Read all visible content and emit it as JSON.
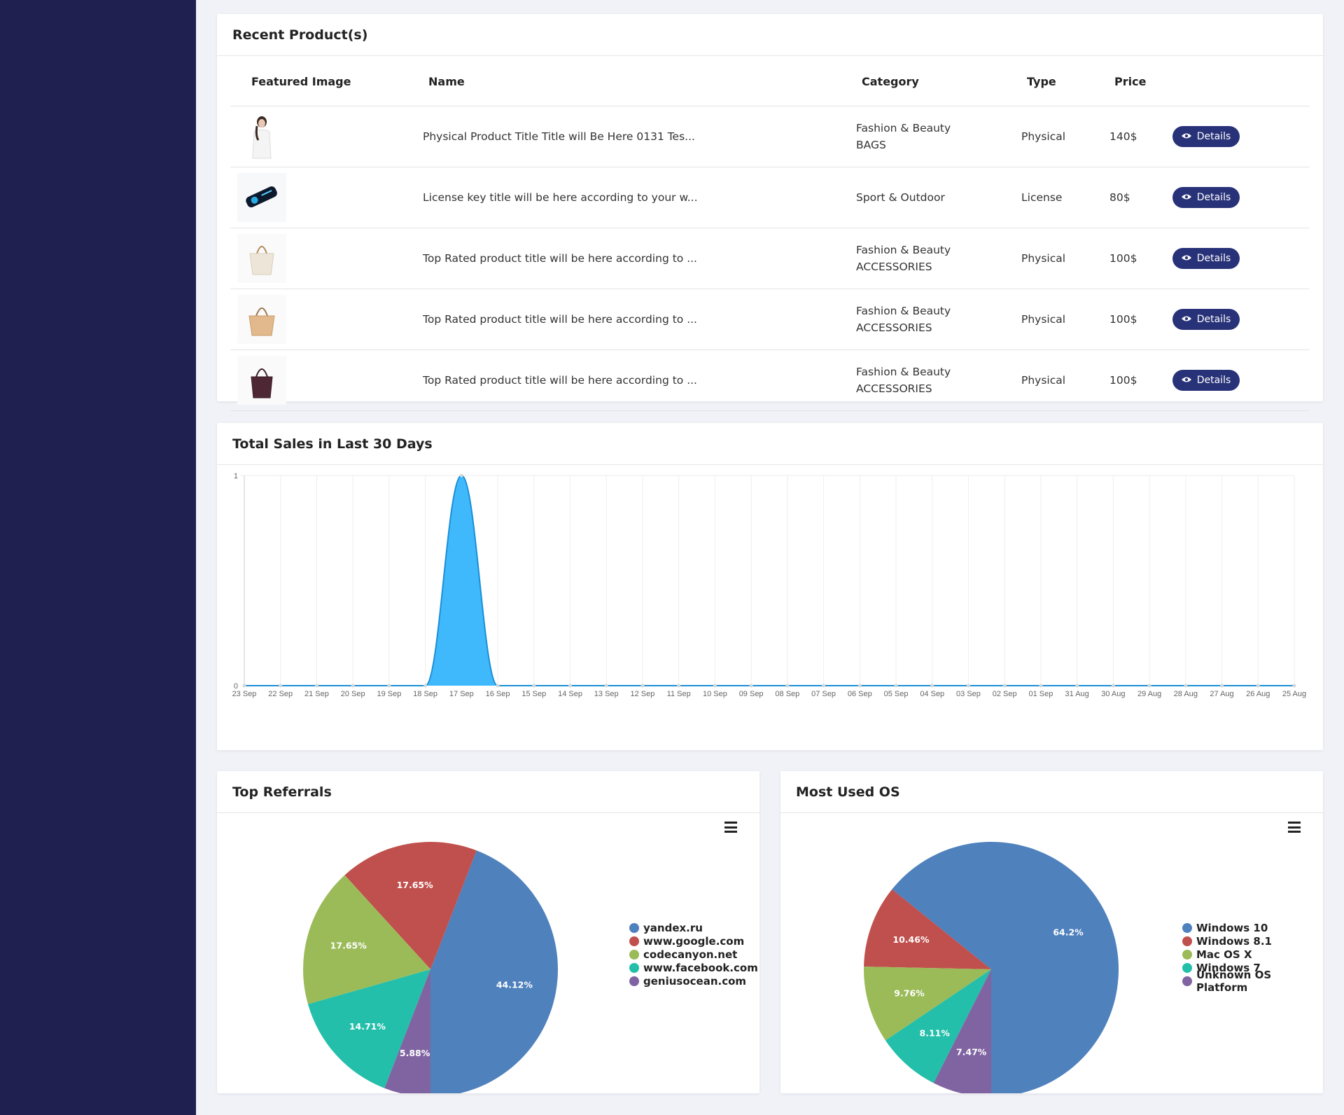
{
  "colors": {
    "sidebar": "#1f2050",
    "button": "#283278",
    "area": "#3fb9fc",
    "line": "#1a8fd6",
    "pie": [
      "#4f81bd",
      "#c0504d",
      "#9bbb59",
      "#23bfaa",
      "#8064a2"
    ]
  },
  "products": {
    "title": "Recent Product(s)",
    "headers": [
      "Featured Image",
      "Name",
      "Category",
      "Type",
      "Price"
    ],
    "button_label": "Details",
    "rows": [
      {
        "image": "model-photo",
        "name": "Physical Product Title Title will Be Here 0131 Tes...",
        "category": "Fashion & Beauty",
        "subcategory": "BAGS",
        "type": "Physical",
        "price": "140$"
      },
      {
        "image": "license-key-usb",
        "name": "License key title will be here according to your w...",
        "category": "Sport & Outdoor",
        "subcategory": "",
        "type": "License",
        "price": "80$"
      },
      {
        "image": "cream-handbag",
        "name": "Top Rated product title will be here according to ...",
        "category": "Fashion & Beauty",
        "subcategory": "ACCESSORIES",
        "type": "Physical",
        "price": "100$"
      },
      {
        "image": "tan-handbag",
        "name": "Top Rated product title will be here according to ...",
        "category": "Fashion & Beauty",
        "subcategory": "ACCESSORIES",
        "type": "Physical",
        "price": "100$"
      },
      {
        "image": "burgundy-handbag",
        "name": "Top Rated product title will be here according to ...",
        "category": "Fashion & Beauty",
        "subcategory": "ACCESSORIES",
        "type": "Physical",
        "price": "100$"
      }
    ]
  },
  "sales": {
    "title": "Total Sales in Last 30 Days"
  },
  "chart_data": [
    {
      "type": "area",
      "title": "Total Sales in Last 30 Days",
      "x": [
        "23 Sep",
        "22 Sep",
        "21 Sep",
        "20 Sep",
        "19 Sep",
        "18 Sep",
        "17 Sep",
        "16 Sep",
        "15 Sep",
        "14 Sep",
        "13 Sep",
        "12 Sep",
        "11 Sep",
        "10 Sep",
        "09 Sep",
        "08 Sep",
        "07 Sep",
        "06 Sep",
        "05 Sep",
        "04 Sep",
        "03 Sep",
        "02 Sep",
        "01 Sep",
        "31 Aug",
        "30 Aug",
        "29 Aug",
        "28 Aug",
        "27 Aug",
        "26 Aug",
        "25 Aug"
      ],
      "values": [
        0,
        0,
        0,
        0,
        0,
        0,
        1,
        0,
        0,
        0,
        0,
        0,
        0,
        0,
        0,
        0,
        0,
        0,
        0,
        0,
        0,
        0,
        0,
        0,
        0,
        0,
        0,
        0,
        0,
        0
      ],
      "yticks": [
        "0",
        "1"
      ],
      "ylim": [
        0,
        1
      ],
      "grid": "vertical"
    },
    {
      "type": "pie",
      "title": "Top Referrals",
      "legend_position": "right",
      "labels": [
        "yandex.ru",
        "www.google.com",
        "codecanyon.net",
        "www.facebook.com",
        "geniusocean.com"
      ],
      "values": [
        44.12,
        17.65,
        17.65,
        14.71,
        5.88
      ],
      "value_labels": [
        "44.12%",
        "17.65%",
        "17.65%",
        "14.71%",
        "5.88%"
      ]
    },
    {
      "type": "pie",
      "title": "Most Used OS",
      "legend_position": "right",
      "labels": [
        "Windows 10",
        "Windows 8.1",
        "Mac OS X",
        "Windows 7",
        "Unknown OS Platform"
      ],
      "values": [
        64.2,
        10.46,
        9.76,
        8.11,
        7.47
      ],
      "value_labels": [
        "64.2%",
        "10.46%",
        "9.76%",
        "8.11%",
        "7.47%"
      ]
    }
  ],
  "referrals": {
    "title": "Top Referrals",
    "menu_icon": "hamburger-menu-icon"
  },
  "os": {
    "title": "Most Used OS",
    "menu_icon": "hamburger-menu-icon"
  }
}
